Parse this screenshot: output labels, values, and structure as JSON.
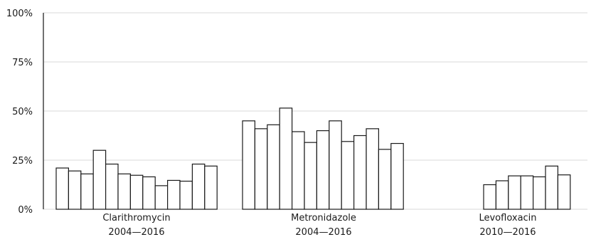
{
  "chart_data": {
    "type": "bar",
    "y_tick_labels": [
      "0%",
      "25%",
      "50%",
      "75%",
      "100%"
    ],
    "y_ticks": [
      0,
      25,
      50,
      75,
      100
    ],
    "ylim": [
      0,
      100
    ],
    "grid": true,
    "groups": [
      {
        "name": "Clarithromycin",
        "years": "2004—2016",
        "values": [
          21,
          19.5,
          18,
          30,
          23,
          18,
          17.3,
          16.5,
          12,
          14.7,
          14.3,
          23,
          22
        ]
      },
      {
        "name": "Metronidazole",
        "years": "2004—2016",
        "values": [
          45,
          41,
          43,
          51.5,
          39.5,
          34,
          40,
          45,
          34.5,
          37.5,
          41,
          30.5,
          33.5
        ]
      },
      {
        "name": "Levofloxacin",
        "years": "2010—2016",
        "values": [
          12.5,
          14.5,
          17,
          17,
          16.5,
          22,
          17.5
        ]
      }
    ]
  },
  "colors": {
    "bar_fill": "#ffffff",
    "bar_stroke": "#1a1a1a",
    "grid": "#d9d9d9",
    "axis": "#444444"
  }
}
